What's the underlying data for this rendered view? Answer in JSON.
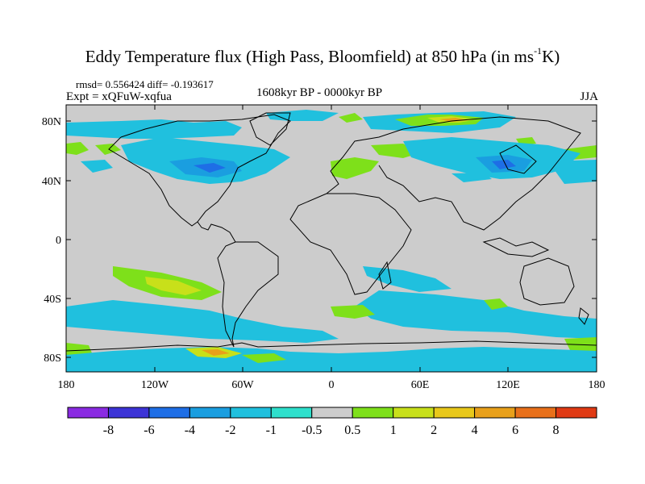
{
  "title": {
    "main": "Eddy Temperature flux (High Pass, Bloomfield) at 850 hPa (in ms",
    "sup": "-1",
    "tail": "K)"
  },
  "stats": "rmsd= 0.556424 diff= -0.193617",
  "experiment": "Expt = xQFuW-xqfua",
  "period": "1608kyr BP - 0000kyr BP",
  "season": "JJA",
  "map": {
    "lat_ticks": [
      "80N",
      "40N",
      "0",
      "40S",
      "80S"
    ],
    "lon_ticks": [
      "180",
      "120W",
      "60W",
      "0",
      "60E",
      "120E",
      "180"
    ]
  },
  "colorbar": {
    "labels": [
      "-8",
      "-6",
      "-4",
      "-2",
      "-1",
      "-0.5",
      "0.5",
      "1",
      "2",
      "4",
      "6",
      "8"
    ],
    "colors": [
      "#8a2be2",
      "#3c33d6",
      "#1e6ee6",
      "#1a9ee0",
      "#20c0de",
      "#2ee0cc",
      "#cccccc",
      "#7ee01a",
      "#c8e01a",
      "#e8c81a",
      "#e8a01a",
      "#e8701a",
      "#e03a14"
    ]
  },
  "colors": {
    "background": "#cccccc",
    "coast": "#000000"
  }
}
